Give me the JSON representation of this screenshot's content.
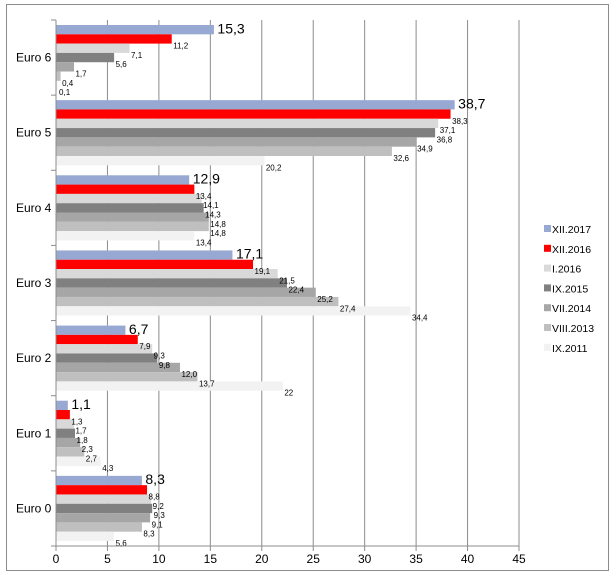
{
  "chart_data": {
    "type": "bar",
    "orientation": "horizontal",
    "title": "",
    "xlabel": "",
    "ylabel": "",
    "xlim": [
      0,
      45
    ],
    "x_ticks": [
      0,
      5,
      10,
      15,
      20,
      25,
      30,
      35,
      40,
      45
    ],
    "x_tick_labels": [
      "0",
      "5",
      "10",
      "15",
      "20",
      "25",
      "30",
      "35",
      "40",
      "45"
    ],
    "grid": "vertical",
    "legend_position": "right",
    "categories": [
      "Euro 6",
      "Euro 5",
      "Euro 4",
      "Euro 3",
      "Euro 2",
      "Euro 1",
      "Euro 0"
    ],
    "series": [
      {
        "name": "XII.2017",
        "color": "#97a9d3",
        "values": [
          15.3,
          38.7,
          12.9,
          17.1,
          6.7,
          1.1,
          8.3
        ],
        "labels": [
          "15,3",
          "38,7",
          "12,9",
          "17,1",
          "6,7",
          "1,1",
          "8,3"
        ]
      },
      {
        "name": "XII.2016",
        "color": "#ff0000",
        "values": [
          11.2,
          38.3,
          13.4,
          19.1,
          7.9,
          1.3,
          8.8
        ],
        "labels": [
          "11,2",
          "38,3",
          "13,4",
          "19,1",
          "7,9",
          "1,3",
          "8,8"
        ]
      },
      {
        "name": "I.2016",
        "color": "#d9d9d9",
        "values": [
          7.1,
          37.1,
          14.1,
          21.5,
          9.3,
          1.7,
          9.2
        ],
        "labels": [
          "7,1",
          "37,1",
          "14,1",
          "21,5",
          "9,3",
          "1,7",
          "9,2"
        ]
      },
      {
        "name": "IX.2015",
        "color": "#808080",
        "values": [
          5.6,
          36.8,
          14.3,
          22.4,
          9.8,
          1.8,
          9.3
        ],
        "labels": [
          "5,6",
          "36,8",
          "14,3",
          "22,4",
          "9,8",
          "1,8",
          "9,3"
        ]
      },
      {
        "name": "VII.2014",
        "color": "#a6a6a6",
        "values": [
          1.7,
          34.9,
          14.8,
          25.2,
          12.0,
          2.3,
          9.1
        ],
        "labels": [
          "1,7",
          "34,9",
          "14,8",
          "25,2",
          "12,0",
          "2,3",
          "9,1"
        ]
      },
      {
        "name": "VIII.2013",
        "color": "#bfbfbf",
        "values": [
          0.4,
          32.6,
          14.8,
          27.4,
          13.7,
          2.7,
          8.3
        ],
        "labels": [
          "0,4",
          "32,6",
          "14,8",
          "27,4",
          "13,7",
          "2,7",
          "8,3"
        ]
      },
      {
        "name": "IX.2011",
        "color": "#f2f2f2",
        "values": [
          0.1,
          20.2,
          13.4,
          34.4,
          22,
          4.3,
          5.6
        ],
        "labels": [
          "0,1",
          "20,2",
          "13,4",
          "34,4",
          "22",
          "4,3",
          "5,6"
        ]
      }
    ]
  }
}
